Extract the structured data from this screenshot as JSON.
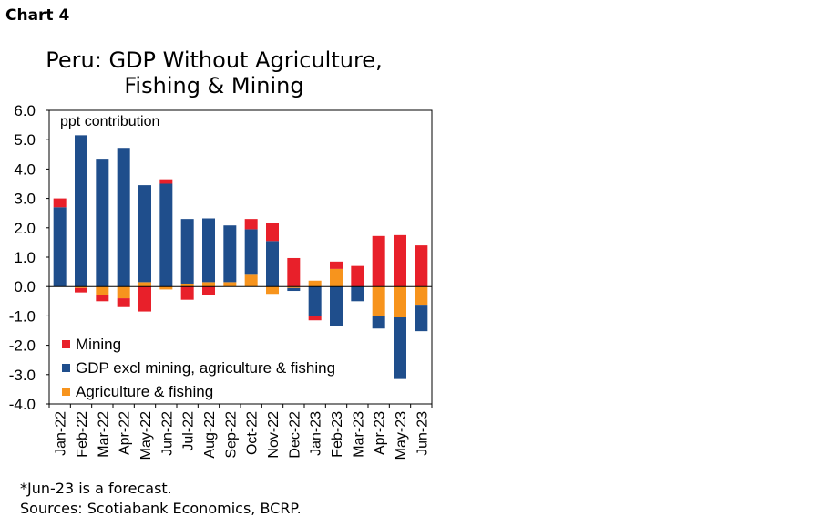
{
  "header": {
    "chart_label": "Chart 4"
  },
  "chart_data": {
    "type": "bar",
    "stacked": true,
    "title_line1": "Peru: GDP Without Agriculture,",
    "title_line2": "Fishing & Mining",
    "unit_label": "ppt contribution",
    "ylim": [
      -4.0,
      6.0
    ],
    "yticks": [
      "6.0",
      "5.0",
      "4.0",
      "3.0",
      "2.0",
      "1.0",
      "0.0",
      "-1.0",
      "-2.0",
      "-3.0",
      "-4.0"
    ],
    "categories": [
      "Jan-22",
      "Feb-22",
      "Mar-22",
      "Apr-22",
      "May-22",
      "Jun-22",
      "Jul-22",
      "Aug-22",
      "Sep-22",
      "Oct-22",
      "Nov-22",
      "Dec-22",
      "Jan-23",
      "Feb-23",
      "Mar-23",
      "Apr-23",
      "May-23",
      "Jun-23"
    ],
    "series": [
      {
        "name": "Agriculture & fishing",
        "color": "#F7941D",
        "values": [
          0.0,
          -0.05,
          -0.3,
          -0.4,
          0.15,
          -0.1,
          0.1,
          0.15,
          0.15,
          0.4,
          -0.25,
          -0.05,
          0.2,
          0.6,
          0.0,
          -1.0,
          -1.05,
          -0.65
        ]
      },
      {
        "name": "GDP excl mining, agriculture & fishing",
        "color": "#1F4E8C",
        "values": [
          2.7,
          5.15,
          4.35,
          4.72,
          3.3,
          3.5,
          2.2,
          2.17,
          1.93,
          1.55,
          1.55,
          -0.1,
          -1.0,
          -1.35,
          -0.5,
          -0.43,
          -2.1,
          -0.87
        ]
      },
      {
        "name": "Mining",
        "color": "#E8202A",
        "values": [
          0.3,
          -0.15,
          -0.2,
          -0.3,
          -0.85,
          0.15,
          -0.45,
          -0.3,
          0.0,
          0.35,
          0.6,
          0.97,
          -0.15,
          0.25,
          0.7,
          1.72,
          1.75,
          1.4
        ]
      }
    ],
    "legend_order": [
      "Mining",
      "GDP excl mining, agriculture & fishing",
      "Agriculture & fishing"
    ],
    "legend_position": "bottom-left"
  },
  "footnote": "*Jun-23 is a forecast.",
  "sources": "Sources: Scotiabank Economics, BCRP."
}
